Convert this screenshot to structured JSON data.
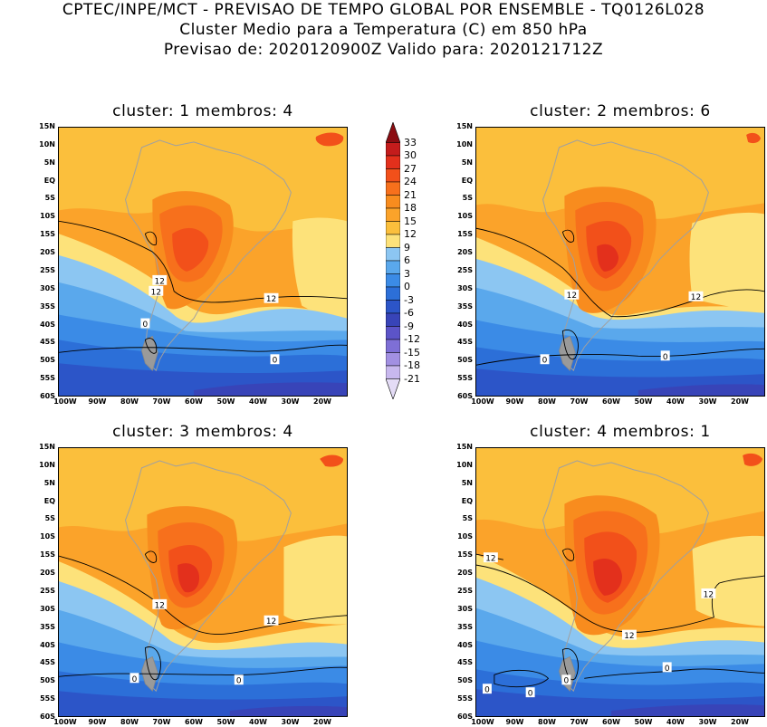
{
  "header": {
    "line1": "CPTEC/INPE/MCT - PREVISAO DE TEMPO GLOBAL POR ENSEMBLE - TQ0126L028",
    "line2": "Cluster Medio para a Temperatura (C) em 850 hPa",
    "line3": "Previsao de: 2020120900Z   Valido para: 2020121712Z"
  },
  "panels": [
    {
      "title": "cluster: 1   membros: 4",
      "contour_labels": [
        "12",
        "12",
        "12",
        "0",
        "0"
      ]
    },
    {
      "title": "cluster: 2   membros: 6",
      "contour_labels": [
        "12",
        "12",
        "0",
        "0"
      ]
    },
    {
      "title": "cluster: 3   membros: 4",
      "contour_labels": [
        "12",
        "12",
        "0",
        "0"
      ]
    },
    {
      "title": "cluster: 4   membros: 1",
      "contour_labels": [
        "12",
        "12",
        "12",
        "0",
        "0",
        "0",
        "0"
      ]
    }
  ],
  "y_ticks": [
    "15N",
    "10N",
    "5N",
    "EQ",
    "5S",
    "10S",
    "15S",
    "20S",
    "25S",
    "30S",
    "35S",
    "40S",
    "45S",
    "50S",
    "55S",
    "60S"
  ],
  "x_ticks": [
    "100W",
    "90W",
    "80W",
    "70W",
    "60W",
    "50W",
    "40W",
    "30W",
    "20W"
  ],
  "colorbar": {
    "labels": [
      "33",
      "30",
      "27",
      "24",
      "21",
      "18",
      "15",
      "12",
      "9",
      "6",
      "3",
      "0",
      "-3",
      "-6",
      "-9",
      "-12",
      "-15",
      "-18",
      "-21"
    ],
    "colors": [
      "#8b0d12",
      "#c41c1c",
      "#e3301c",
      "#f2501a",
      "#f7701c",
      "#f88c1e",
      "#fba32a",
      "#fbbf3c",
      "#fde27a",
      "#8cc6f2",
      "#5aa8ec",
      "#3b8be6",
      "#2c6fd8",
      "#2c55c8",
      "#3844b8",
      "#5c54c8",
      "#7e6fd6",
      "#a290e2",
      "#c8b8ee",
      "#e4dcf6"
    ]
  }
}
